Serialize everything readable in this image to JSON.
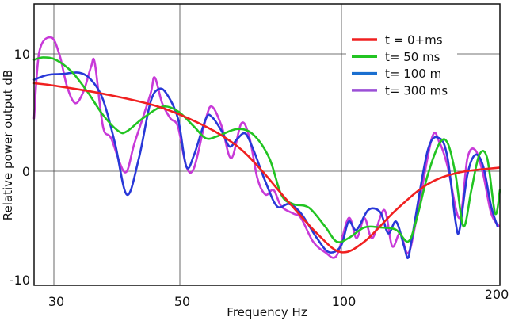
{
  "chart_data": {
    "type": "line",
    "title": "",
    "xlabel": "Frequency Hz",
    "ylabel": "Relative power output dB",
    "xlim": [
      27,
      200
    ],
    "ylim": [
      -10,
      14.5
    ],
    "x_ticks": [
      {
        "value": 30,
        "label": "30"
      },
      {
        "value": 50,
        "label": "50"
      },
      {
        "value": 100,
        "label": "100"
      },
      {
        "value": 200,
        "label": "200"
      }
    ],
    "y_ticks": [
      {
        "value": 10,
        "label": "10"
      },
      {
        "value": 0,
        "label": "0"
      },
      {
        "value": -10,
        "label": "-10"
      }
    ],
    "grid": true,
    "legend_position": "top-right",
    "series": [
      {
        "name": "t = 0+ms",
        "color": "#f02020",
        "legend_color": "#f02020",
        "x": [
          27,
          30,
          37.8,
          46.6,
          58.1,
          67.9,
          75.2,
          82.6,
          92.4,
          99.8,
          114.5,
          134.5,
          154.5,
          174.5,
          199.5
        ],
        "y": [
          7.5,
          7.3,
          6.6,
          5.5,
          3.8,
          2.1,
          0.1,
          -2.3,
          -5.3,
          -6.9,
          -6.0,
          -3.3,
          -1.1,
          -0.1,
          0.3
        ]
      },
      {
        "name": "t= 50 ms",
        "color": "#22c422",
        "legend_color": "#22c422",
        "x": [
          27,
          28.4,
          30.3,
          32.8,
          35.3,
          37.8,
          40.3,
          41.6,
          44.1,
          47.2,
          49.7,
          54.4,
          58.1,
          61.8,
          67.9,
          72.8,
          77.7,
          81.4,
          85,
          89.9,
          94.9,
          98.5,
          104.5,
          114.5,
          124.5,
          134.5,
          142,
          147,
          154.5,
          162,
          167,
          172,
          177,
          182,
          187,
          192,
          197,
          200
        ],
        "y": [
          9.5,
          9.7,
          9.5,
          8.5,
          6.8,
          4.8,
          3.4,
          3.4,
          4.5,
          5.5,
          5.1,
          3.8,
          2.8,
          3.0,
          3.6,
          3.1,
          1.1,
          -2.0,
          -2.8,
          -3.1,
          -4.7,
          -6.0,
          -5.7,
          -4.8,
          -4.8,
          -5.0,
          -6.0,
          -4.3,
          -0.3,
          2.4,
          2.4,
          -0.3,
          -4.7,
          -1.6,
          1.4,
          1.1,
          -3.6,
          -1.6
        ]
      },
      {
        "name": "t= 100 m",
        "color": "#2838d8",
        "legend_color": "#1a6fd0",
        "x": [
          27,
          29,
          31.5,
          34,
          35.9,
          37.8,
          39.7,
          41.6,
          43.5,
          45.3,
          46.6,
          47.9,
          49.7,
          52,
          54.4,
          58.1,
          60,
          63,
          65.4,
          67.9,
          70.3,
          72.8,
          76.5,
          80.1,
          83.8,
          87.5,
          92.4,
          96.1,
          99.8,
          104.5,
          109.5,
          117,
          124.5,
          129.5,
          134.5,
          139.5,
          142,
          144.5,
          154.5,
          162,
          167,
          172,
          174.5,
          179.5,
          184.5,
          189.5,
          194.5,
          198.5
        ],
        "y": [
          7.8,
          8.2,
          8.3,
          8.4,
          7.8,
          6.1,
          2.4,
          -2.0,
          1.1,
          5.8,
          7.0,
          6.6,
          4.5,
          0.4,
          1.4,
          4.5,
          4.6,
          3.4,
          2.1,
          2.8,
          3.2,
          1.8,
          -0.9,
          -3.0,
          -2.8,
          -3.6,
          -5.7,
          -6.9,
          -6.4,
          -4.3,
          -5.0,
          -3.3,
          -3.5,
          -5.3,
          -4.3,
          -6.4,
          -7.4,
          -5.7,
          1.8,
          2.8,
          1.1,
          -4.3,
          -5.0,
          -0.3,
          1.4,
          0.4,
          -3.0,
          -4.7
        ]
      },
      {
        "name": "t= 300 ms",
        "color": "#c83ad8",
        "legend_color": "#9b4fd6",
        "x": [
          27,
          27.8,
          29.6,
          30.9,
          32.1,
          33.4,
          34.7,
          35.9,
          36.5,
          37.8,
          39.1,
          41.3,
          42.8,
          45.3,
          46,
          47.2,
          48.5,
          49.7,
          52,
          54.4,
          58.1,
          60,
          63,
          65.9,
          69.1,
          71.6,
          74,
          76.5,
          79,
          81.4,
          85,
          87.5,
          91.2,
          94.9,
          98.5,
          104.5,
          109.5,
          114.5,
          119.5,
          127,
          132,
          137,
          142,
          147,
          157,
          162,
          167,
          174.5,
          179.5,
          184.5,
          189.5,
          194.5,
          199.5
        ],
        "y": [
          4.5,
          10.2,
          11.4,
          9.9,
          7.2,
          5.8,
          6.8,
          8.9,
          9.2,
          3.8,
          2.8,
          -0.1,
          2.4,
          6.5,
          8.0,
          5.8,
          4.5,
          3.8,
          0.4,
          0.3,
          4.5,
          5.5,
          3.8,
          1.1,
          4.1,
          2.8,
          -0.6,
          -2.0,
          -1.6,
          -3.0,
          -3.6,
          -4.0,
          -6.0,
          -6.9,
          -7.2,
          -4.0,
          -5.7,
          -4.0,
          -5.7,
          -3.3,
          -6.4,
          -5.3,
          -7.0,
          -4.3,
          2.8,
          2.4,
          0.4,
          -4.0,
          1.1,
          1.8,
          -0.3,
          -3.6,
          -4.7
        ]
      }
    ]
  }
}
